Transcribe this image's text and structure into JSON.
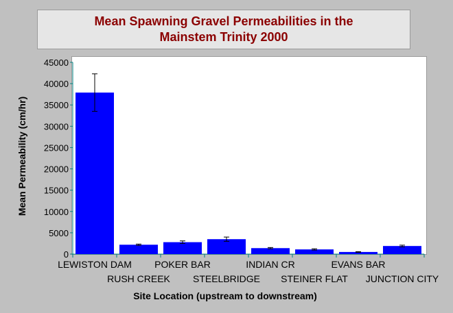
{
  "chart_data": {
    "type": "bar",
    "title_line1": "Mean Spawning Gravel Permeabilities in the",
    "title_line2": "Mainstem Trinity 2000",
    "xlabel": "Site Location (upstream to downstream)",
    "ylabel": "Mean Permeability (cm/hr)",
    "categories": [
      "LEWISTON DAM",
      "RUSH CREEK",
      "POKER BAR",
      "STEELBRIDGE",
      "INDIAN CR",
      "STEINER FLAT",
      "EVANS BAR",
      "JUNCTION CITY"
    ],
    "values": [
      37900,
      2200,
      2800,
      3500,
      1400,
      1100,
      500,
      1900
    ],
    "error": [
      4400,
      150,
      300,
      500,
      150,
      150,
      80,
      200
    ],
    "ylim": [
      0,
      45000
    ],
    "yticks": [
      "0",
      "5000",
      "10000",
      "15000",
      "20000",
      "25000",
      "30000",
      "35000",
      "40000",
      "45000"
    ],
    "bar_color": "#0000ff",
    "title_color": "#8b0000",
    "grid": false,
    "legend": "none"
  }
}
